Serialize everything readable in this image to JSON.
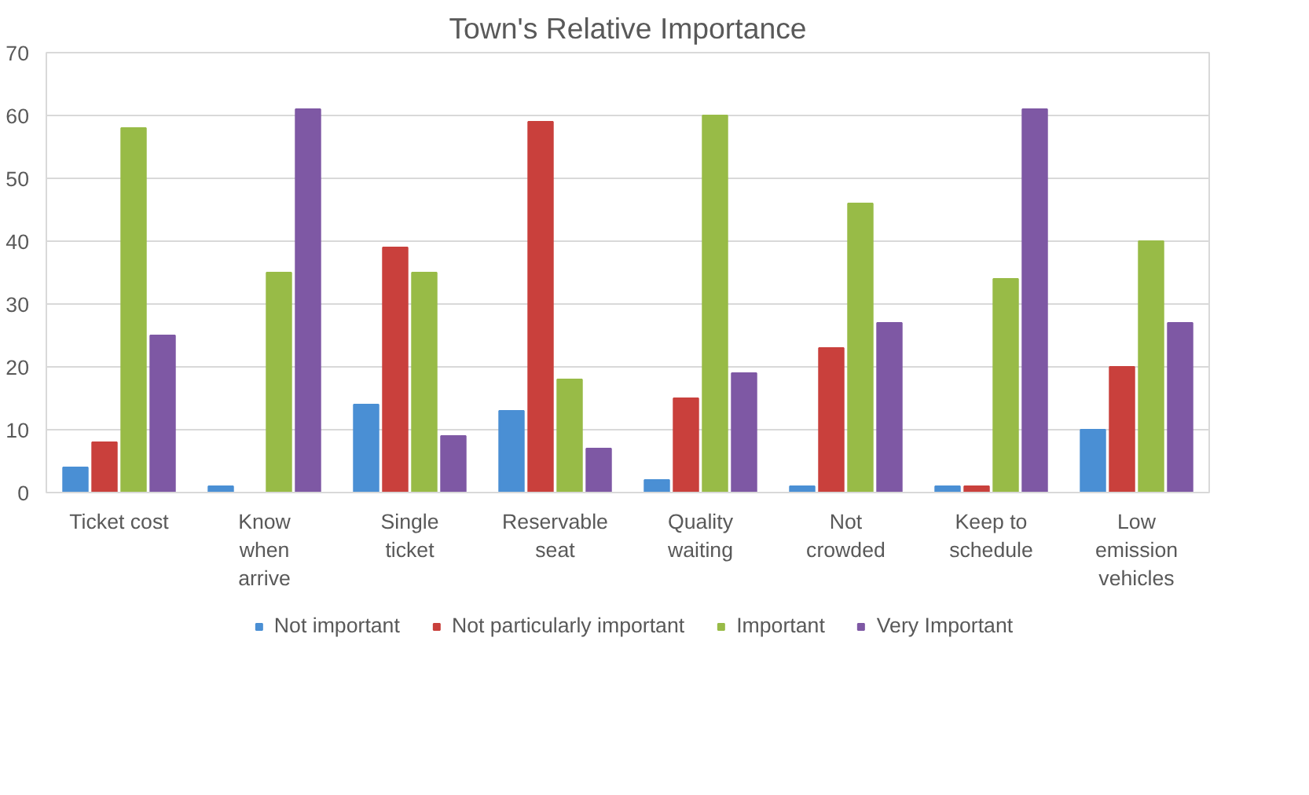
{
  "chart_data": {
    "type": "bar",
    "title": "Town's Relative Importance",
    "categories": [
      "Ticket cost",
      "Know\nwhen\narrive",
      "Single\nticket",
      "Reservable\nseat",
      "Quality\nwaiting",
      "Not\ncrowded",
      "Keep to\nschedule",
      "Low\nemission\nvehicles"
    ],
    "series": [
      {
        "name": "Not important",
        "color": "#4a8fd4",
        "values": [
          4,
          1,
          14,
          13,
          2,
          1,
          1,
          10
        ]
      },
      {
        "name": "Not particularly important",
        "color": "#c9403c",
        "values": [
          8,
          0,
          39,
          59,
          15,
          23,
          1,
          20
        ]
      },
      {
        "name": "Important",
        "color": "#98bb47",
        "values": [
          58,
          35,
          35,
          18,
          60,
          46,
          34,
          40
        ]
      },
      {
        "name": "Very Important",
        "color": "#7e58a4",
        "values": [
          25,
          61,
          9,
          7,
          19,
          27,
          61,
          27
        ]
      }
    ],
    "ylim": [
      0,
      70
    ],
    "yticks": [
      0,
      10,
      20,
      30,
      40,
      50,
      60,
      70
    ],
    "grid": "y",
    "legend": "bottom"
  }
}
